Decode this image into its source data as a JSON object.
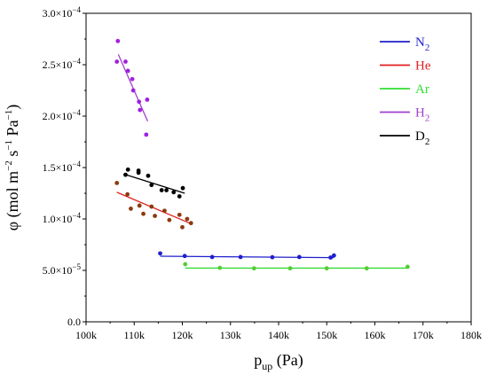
{
  "chart_data": {
    "type": "scatter",
    "xlabel": {
      "main": "p",
      "sub": "up",
      "rest": " (Pa)"
    },
    "ylabel": {
      "main": "φ (mol m",
      "sup1": "−2",
      "mid1": " s",
      "sup2": "−1",
      "mid2": " Pa",
      "sup3": "−1",
      "end": ")"
    },
    "xlim": [
      100000,
      180000
    ],
    "ylim": [
      0,
      0.0003
    ],
    "x_ticks": [
      100000,
      110000,
      120000,
      130000,
      140000,
      150000,
      160000,
      170000,
      180000
    ],
    "x_tick_labels": [
      "100k",
      "110k",
      "120k",
      "130k",
      "140k",
      "150k",
      "160k",
      "170k",
      "180k"
    ],
    "y_ticks": [
      0,
      5e-05,
      0.0001,
      0.00015,
      0.0002,
      0.00025,
      0.0003
    ],
    "y_tick_labels": [
      {
        "mantissa": "0.0",
        "exp": ""
      },
      {
        "mantissa": "5.0×10",
        "exp": "−5"
      },
      {
        "mantissa": "1.0×10",
        "exp": "−4"
      },
      {
        "mantissa": "1.5×10",
        "exp": "−4"
      },
      {
        "mantissa": "2.0×10",
        "exp": "−4"
      },
      {
        "mantissa": "2.5×10",
        "exp": "−4"
      },
      {
        "mantissa": "3.0×10",
        "exp": "−4"
      }
    ],
    "grid": false,
    "legend_position": "top-right",
    "series": [
      {
        "name": "N",
        "sub": "2",
        "legend_color": "#1f1fcc",
        "point_color": "#1f1fcc",
        "points": [
          [
            115400,
            6.65e-05
          ],
          [
            120500,
            6.4e-05
          ],
          [
            126200,
            6.3e-05
          ],
          [
            132100,
            6.3e-05
          ],
          [
            138700,
            6.28e-05
          ],
          [
            144300,
            6.3e-05
          ],
          [
            150800,
            6.25e-05
          ],
          [
            151500,
            6.45e-05
          ]
        ],
        "fit": [
          [
            115400,
            6.38e-05
          ],
          [
            151500,
            6.24e-05
          ]
        ]
      },
      {
        "name": "He",
        "sub": "",
        "legend_color": "#e02020",
        "point_color": "#8b3a0f",
        "points": [
          [
            106400,
            0.000135
          ],
          [
            108600,
            0.000124
          ],
          [
            109300,
            0.00011
          ],
          [
            111100,
            0.000113
          ],
          [
            111900,
            0.000105
          ],
          [
            113600,
            0.000112
          ],
          [
            114300,
            0.000103
          ],
          [
            116300,
            0.000108
          ],
          [
            117300,
            9.9e-05
          ],
          [
            119400,
            0.000104
          ],
          [
            120000,
            9.2e-05
          ],
          [
            121000,
            0.0001
          ],
          [
            121800,
            9.6e-05
          ]
        ],
        "fit": [
          [
            106400,
            0.000126
          ],
          [
            122000,
            9.5e-05
          ]
        ]
      },
      {
        "name": "Ar",
        "sub": "",
        "legend_color": "#33dd33",
        "point_color": "#55cc33",
        "points": [
          [
            120600,
            5.6e-05
          ],
          [
            127800,
            5.25e-05
          ],
          [
            134900,
            5.2e-05
          ],
          [
            142400,
            5.2e-05
          ],
          [
            150000,
            5.2e-05
          ],
          [
            158300,
            5.2e-05
          ],
          [
            166800,
            5.35e-05
          ]
        ],
        "fit": [
          [
            120600,
            5.22e-05
          ],
          [
            166800,
            5.22e-05
          ]
        ]
      },
      {
        "name": "H",
        "sub": "2",
        "legend_color": "#a040d0",
        "point_color": "#a020e0",
        "points": [
          [
            106600,
            0.000273
          ],
          [
            106400,
            0.000253
          ],
          [
            108200,
            0.000253
          ],
          [
            108700,
            0.000244
          ],
          [
            109600,
            0.000236
          ],
          [
            109800,
            0.000225
          ],
          [
            111000,
            0.000214
          ],
          [
            111200,
            0.000206
          ],
          [
            112700,
            0.000216
          ],
          [
            112500,
            0.000182
          ]
        ],
        "fit": [
          [
            106700,
            0.00026
          ],
          [
            112800,
            0.000195
          ]
        ]
      },
      {
        "name": "D",
        "sub": "2",
        "legend_color": "#000000",
        "point_color": "#000000",
        "points": [
          [
            108200,
            0.000143
          ],
          [
            108700,
            0.000148
          ],
          [
            110900,
            0.000145
          ],
          [
            110900,
            0.000147
          ],
          [
            112900,
            0.000142
          ],
          [
            113600,
            0.000133
          ],
          [
            115700,
            0.000128
          ],
          [
            116700,
            0.000128
          ],
          [
            118200,
            0.000126
          ],
          [
            119400,
            0.000122
          ],
          [
            120100,
            0.00013
          ]
        ],
        "fit": [
          [
            108300,
            0.000143
          ],
          [
            120500,
            0.000125
          ]
        ]
      }
    ]
  }
}
